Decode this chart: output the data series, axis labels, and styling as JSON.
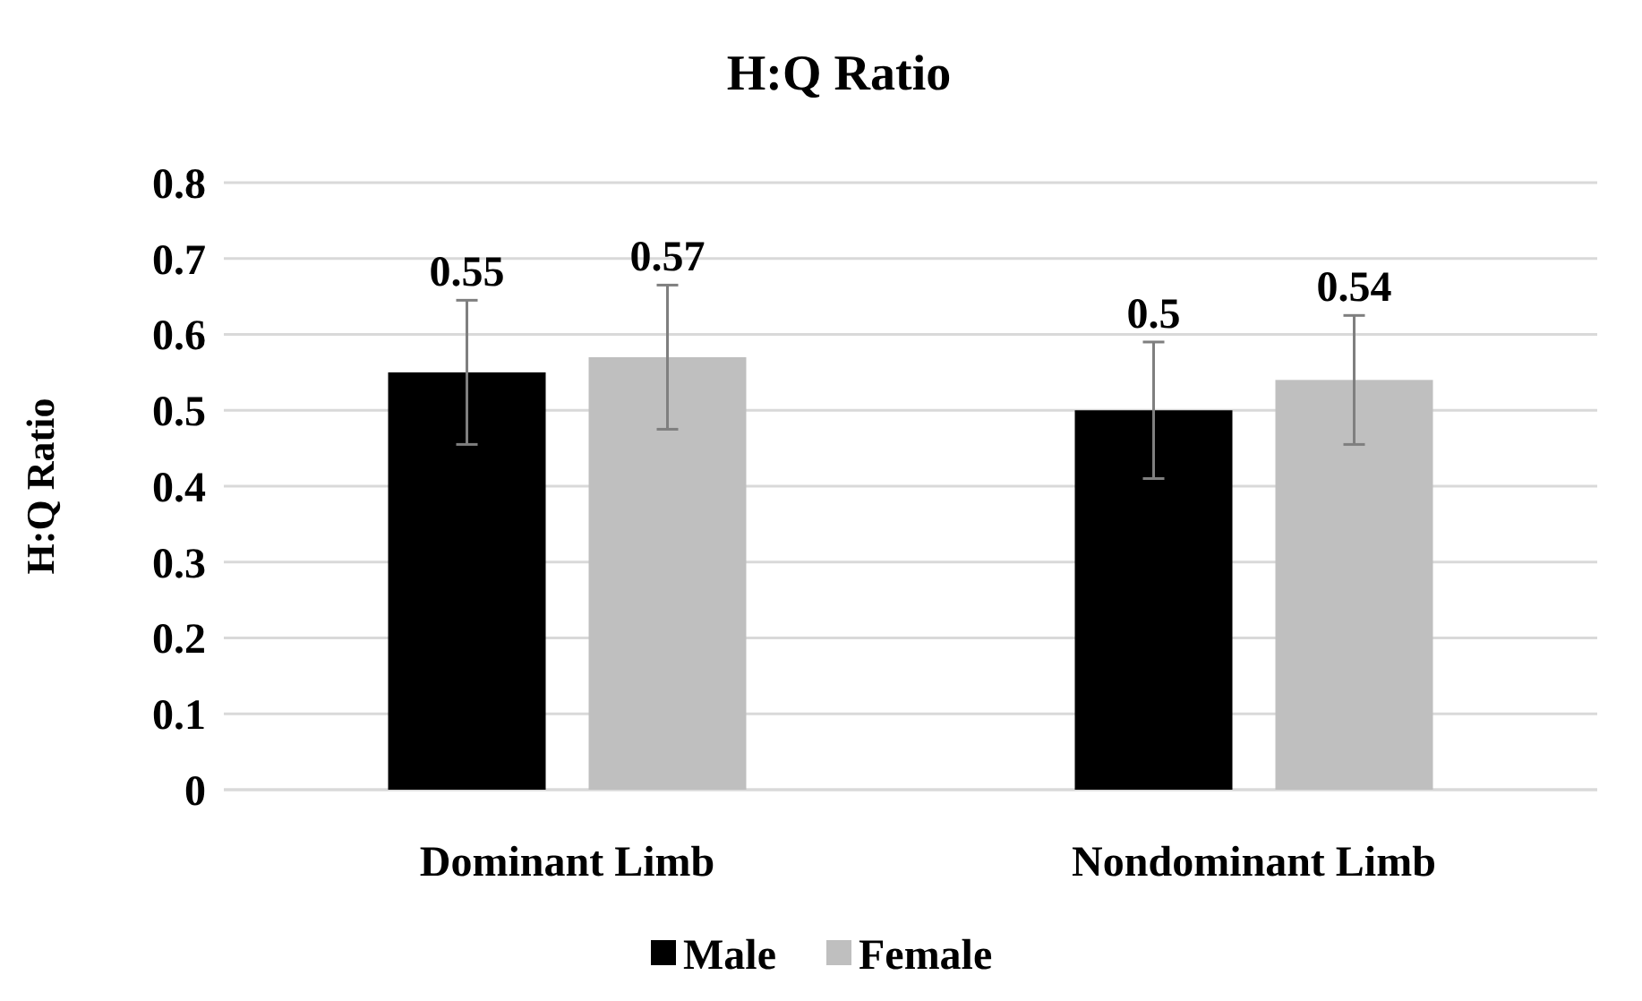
{
  "chart_data": {
    "type": "bar",
    "title": "H:Q Ratio",
    "ylabel": "H:Q Ratio",
    "categories": [
      "Dominant Limb",
      "Nondominant Limb"
    ],
    "series": [
      {
        "name": "Male",
        "color": "#000000",
        "values": [
          0.55,
          0.5
        ],
        "errors": [
          0.095,
          0.09
        ]
      },
      {
        "name": "Female",
        "color": "#bfbfbf",
        "values": [
          0.57,
          0.54
        ],
        "errors": [
          0.095,
          0.085
        ]
      }
    ],
    "ylim": [
      0,
      0.8
    ],
    "yticks": [
      0,
      0.1,
      0.2,
      0.3,
      0.4,
      0.5,
      0.6,
      0.7,
      0.8
    ],
    "grid": "y",
    "legend": "bottom",
    "data_labels": true
  }
}
